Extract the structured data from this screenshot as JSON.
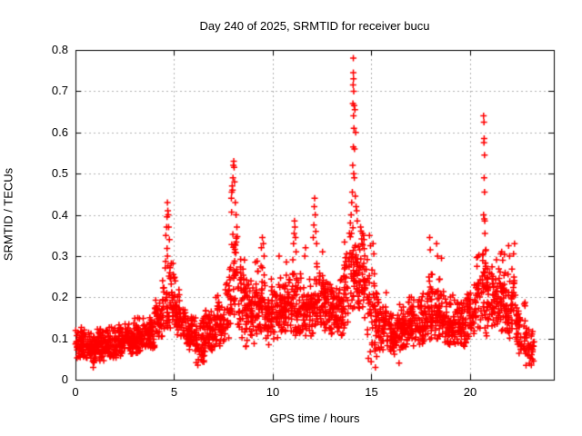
{
  "chart_data": {
    "type": "scatter",
    "title": "Day 240 of 2025, SRMTID for receiver bucu",
    "xlabel": "GPS time / hours",
    "ylabel": "SRMTID / TECUs",
    "xlim": [
      0,
      24.24
    ],
    "ylim": [
      0,
      0.8
    ],
    "xticks": [
      0,
      5,
      10,
      15,
      20
    ],
    "xtick_labels": [
      "0",
      "5",
      "10",
      "15",
      "20"
    ],
    "yticks": [
      0,
      0.1,
      0.2,
      0.3,
      0.4,
      0.5,
      0.6,
      0.7,
      0.8
    ],
    "ytick_labels": [
      "0",
      "0.1",
      "0.2",
      "0.3",
      "0.4",
      "0.5",
      "0.6",
      "0.7",
      "0.8"
    ],
    "grid": true,
    "grid_color": "#b0b0b0",
    "axis_color": "#000000",
    "marker": "plus",
    "marker_color": "#ff0000",
    "legend": "none",
    "seed": 7,
    "density_bands_format": [
      "hour_start",
      "hour_end",
      "n_points",
      "y_low",
      "y_high"
    ],
    "density_bands": [
      [
        0.0,
        0.5,
        60,
        0.05,
        0.13
      ],
      [
        0.5,
        1.0,
        60,
        0.04,
        0.12
      ],
      [
        1.0,
        1.5,
        60,
        0.04,
        0.13
      ],
      [
        1.5,
        2.0,
        60,
        0.05,
        0.13
      ],
      [
        2.0,
        2.5,
        60,
        0.05,
        0.14
      ],
      [
        2.5,
        3.0,
        60,
        0.06,
        0.15
      ],
      [
        3.0,
        3.5,
        60,
        0.06,
        0.16
      ],
      [
        3.5,
        4.0,
        60,
        0.07,
        0.17
      ],
      [
        4.0,
        4.4,
        40,
        0.08,
        0.22
      ],
      [
        4.4,
        4.8,
        40,
        0.1,
        0.38
      ],
      [
        4.8,
        5.1,
        30,
        0.12,
        0.3
      ],
      [
        5.1,
        5.6,
        50,
        0.1,
        0.22
      ],
      [
        5.6,
        6.1,
        55,
        0.06,
        0.17
      ],
      [
        6.1,
        6.6,
        55,
        0.04,
        0.16
      ],
      [
        6.6,
        7.1,
        55,
        0.07,
        0.19
      ],
      [
        7.1,
        7.6,
        55,
        0.07,
        0.22
      ],
      [
        7.6,
        7.9,
        30,
        0.1,
        0.32
      ],
      [
        7.9,
        8.2,
        30,
        0.12,
        0.45
      ],
      [
        8.2,
        8.6,
        40,
        0.1,
        0.33
      ],
      [
        8.6,
        9.1,
        55,
        0.08,
        0.26
      ],
      [
        9.1,
        9.6,
        55,
        0.1,
        0.3
      ],
      [
        9.6,
        10.1,
        55,
        0.08,
        0.26
      ],
      [
        10.1,
        10.6,
        55,
        0.09,
        0.27
      ],
      [
        10.6,
        11.1,
        55,
        0.1,
        0.3
      ],
      [
        11.1,
        11.6,
        55,
        0.1,
        0.27
      ],
      [
        11.6,
        12.1,
        55,
        0.1,
        0.26
      ],
      [
        12.1,
        12.6,
        55,
        0.12,
        0.3
      ],
      [
        12.6,
        13.1,
        55,
        0.1,
        0.27
      ],
      [
        13.1,
        13.6,
        55,
        0.1,
        0.26
      ],
      [
        13.6,
        14.0,
        40,
        0.12,
        0.38
      ],
      [
        14.0,
        14.3,
        35,
        0.15,
        0.42
      ],
      [
        14.3,
        14.8,
        50,
        0.14,
        0.38
      ],
      [
        14.8,
        15.3,
        50,
        0.04,
        0.3
      ],
      [
        15.3,
        15.8,
        50,
        0.06,
        0.22
      ],
      [
        15.8,
        16.3,
        55,
        0.05,
        0.18
      ],
      [
        16.3,
        16.8,
        55,
        0.06,
        0.19
      ],
      [
        16.8,
        17.3,
        55,
        0.08,
        0.21
      ],
      [
        17.3,
        17.8,
        55,
        0.08,
        0.23
      ],
      [
        17.8,
        18.3,
        55,
        0.09,
        0.27
      ],
      [
        18.3,
        18.8,
        55,
        0.08,
        0.26
      ],
      [
        18.8,
        19.3,
        55,
        0.07,
        0.21
      ],
      [
        19.3,
        19.8,
        55,
        0.08,
        0.21
      ],
      [
        19.8,
        20.3,
        50,
        0.09,
        0.25
      ],
      [
        20.3,
        20.8,
        45,
        0.12,
        0.33
      ],
      [
        20.8,
        21.3,
        55,
        0.1,
        0.3
      ],
      [
        21.3,
        21.8,
        55,
        0.1,
        0.31
      ],
      [
        21.8,
        22.3,
        50,
        0.08,
        0.29
      ],
      [
        22.3,
        22.8,
        45,
        0.06,
        0.22
      ],
      [
        22.8,
        23.25,
        35,
        0.03,
        0.14
      ]
    ],
    "peak_points": [
      [
        4.58,
        0.35
      ],
      [
        4.62,
        0.37
      ],
      [
        4.64,
        0.395
      ],
      [
        4.66,
        0.43
      ],
      [
        4.68,
        0.41
      ],
      [
        4.7,
        0.4
      ],
      [
        4.72,
        0.37
      ],
      [
        4.76,
        0.34
      ],
      [
        7.9,
        0.44
      ],
      [
        7.92,
        0.455
      ],
      [
        7.94,
        0.47
      ],
      [
        7.96,
        0.46
      ],
      [
        7.98,
        0.49
      ],
      [
        8.0,
        0.52
      ],
      [
        8.02,
        0.53
      ],
      [
        8.04,
        0.515
      ],
      [
        8.06,
        0.48
      ],
      [
        8.1,
        0.43
      ],
      [
        8.14,
        0.4
      ],
      [
        8.18,
        0.37
      ],
      [
        9.42,
        0.32
      ],
      [
        9.47,
        0.345
      ],
      [
        9.52,
        0.33
      ],
      [
        9.56,
        0.3
      ],
      [
        10.32,
        0.3
      ],
      [
        11.05,
        0.33
      ],
      [
        11.08,
        0.355
      ],
      [
        11.1,
        0.385
      ],
      [
        11.12,
        0.37
      ],
      [
        11.15,
        0.345
      ],
      [
        11.18,
        0.31
      ],
      [
        11.62,
        0.3
      ],
      [
        11.66,
        0.32
      ],
      [
        12.05,
        0.345
      ],
      [
        12.08,
        0.375
      ],
      [
        12.1,
        0.42
      ],
      [
        12.12,
        0.44
      ],
      [
        12.15,
        0.4
      ],
      [
        12.18,
        0.36
      ],
      [
        12.22,
        0.33
      ],
      [
        12.52,
        0.31
      ],
      [
        13.93,
        0.38
      ],
      [
        13.97,
        0.4
      ],
      [
        14.0,
        0.43
      ],
      [
        14.03,
        0.455
      ],
      [
        14.05,
        0.52
      ],
      [
        14.06,
        0.67
      ],
      [
        14.07,
        0.715
      ],
      [
        14.08,
        0.78
      ],
      [
        14.08,
        0.745
      ],
      [
        14.08,
        0.565
      ],
      [
        14.09,
        0.73
      ],
      [
        14.09,
        0.64
      ],
      [
        14.1,
        0.7
      ],
      [
        14.1,
        0.5
      ],
      [
        14.11,
        0.61
      ],
      [
        14.12,
        0.665
      ],
      [
        14.13,
        0.49
      ],
      [
        14.14,
        0.56
      ],
      [
        14.16,
        0.655
      ],
      [
        14.18,
        0.445
      ],
      [
        14.2,
        0.6
      ],
      [
        14.22,
        0.42
      ],
      [
        14.25,
        0.41
      ],
      [
        14.28,
        0.385
      ],
      [
        14.45,
        0.37
      ],
      [
        14.55,
        0.355
      ],
      [
        14.62,
        0.34
      ],
      [
        14.9,
        0.35
      ],
      [
        14.95,
        0.325
      ],
      [
        15.08,
        0.33
      ],
      [
        15.12,
        0.305
      ],
      [
        17.95,
        0.345
      ],
      [
        17.98,
        0.315
      ],
      [
        18.3,
        0.33
      ],
      [
        18.35,
        0.3
      ],
      [
        18.55,
        0.295
      ],
      [
        20.66,
        0.305
      ],
      [
        20.68,
        0.4
      ],
      [
        20.68,
        0.64
      ],
      [
        20.7,
        0.625
      ],
      [
        20.7,
        0.575
      ],
      [
        20.71,
        0.585
      ],
      [
        20.71,
        0.49
      ],
      [
        20.72,
        0.39
      ],
      [
        20.73,
        0.545
      ],
      [
        20.73,
        0.455
      ],
      [
        20.74,
        0.385
      ],
      [
        20.75,
        0.355
      ],
      [
        20.78,
        0.27
      ],
      [
        20.8,
        0.315
      ],
      [
        21.55,
        0.305
      ],
      [
        21.6,
        0.31
      ],
      [
        21.95,
        0.325
      ],
      [
        22.0,
        0.3
      ],
      [
        22.2,
        0.305
      ],
      [
        22.25,
        0.33
      ],
      [
        0.9,
        0.03
      ],
      [
        6.2,
        0.035
      ],
      [
        15.2,
        0.03
      ],
      [
        16.4,
        0.04
      ],
      [
        23.1,
        0.035
      ]
    ]
  }
}
